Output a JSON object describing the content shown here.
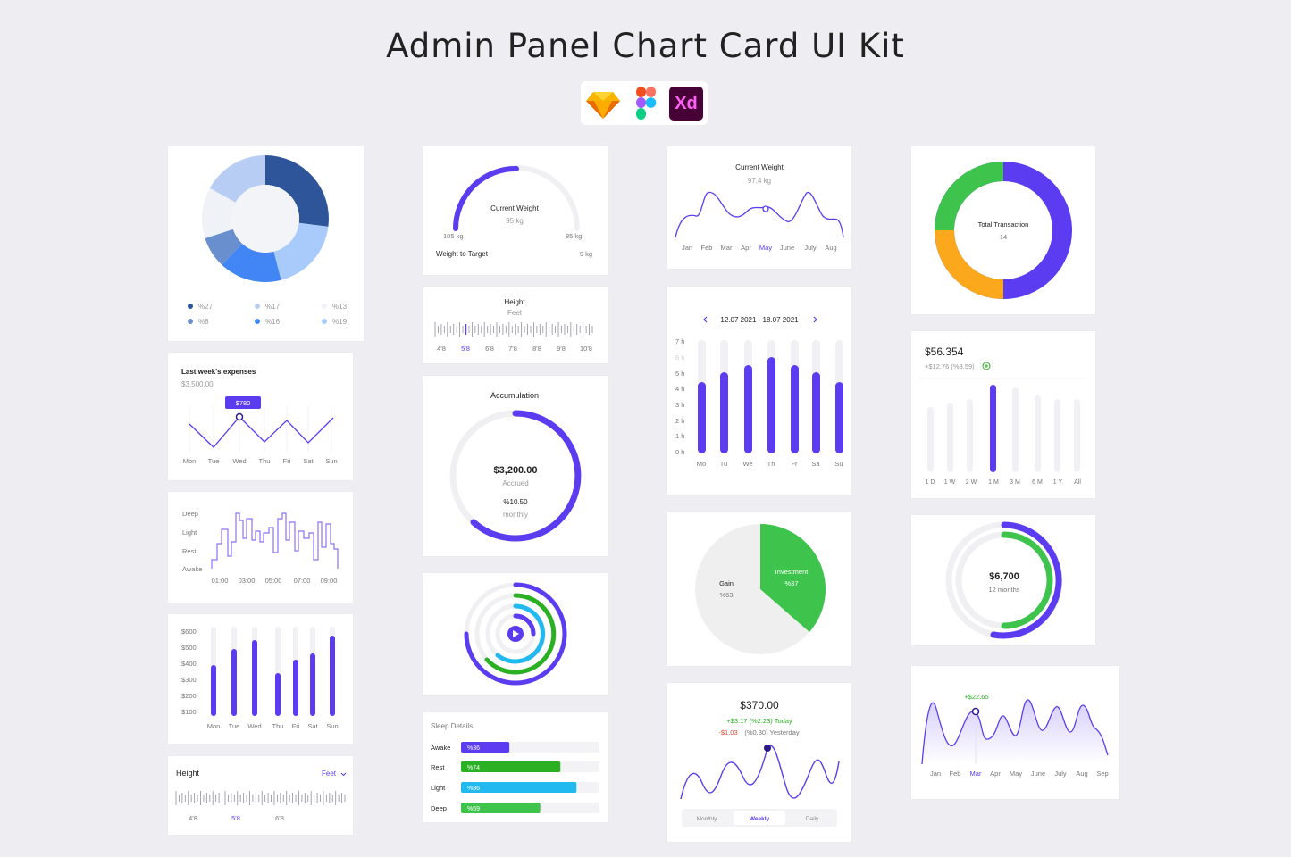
{
  "page": {
    "title": "Admin Panel Chart Card UI Kit"
  },
  "tools": {
    "xd_label": "Xd"
  },
  "donut_card": {
    "legend": [
      "%27",
      "%17",
      "%13",
      "%8",
      "%16",
      "%19"
    ],
    "colors": [
      "#2e5599",
      "#b7cdf4",
      "#eff2f7",
      "#6a8fcf",
      "#4286f5",
      "#a9cbfb"
    ]
  },
  "expenses_card": {
    "title": "Last week's expenses",
    "amount": "$3,500.00",
    "tooltip": "$780",
    "days": [
      "Mon",
      "Tue",
      "Wed",
      "Thu",
      "Fri",
      "Sat",
      "Sun"
    ]
  },
  "sleep_step_card": {
    "levels": [
      "Deep",
      "Light",
      "Rest",
      "Awake"
    ],
    "times": [
      "01:00",
      "03:00",
      "05:00",
      "07:00",
      "09:00"
    ]
  },
  "money_bar_card": {
    "ylabels": [
      "$600",
      "$500",
      "$400",
      "$300",
      "$200",
      "$100"
    ],
    "days": [
      "Mon",
      "Tue",
      "Wed",
      "Thu",
      "Fri",
      "Sat",
      "Sun"
    ]
  },
  "height_card_small": {
    "title": "Height",
    "unit_select": "Feet",
    "ticks": [
      "4'8",
      "5'8",
      "6'8"
    ]
  },
  "gauge_card": {
    "title": "Current Weight",
    "value": "95 kg",
    "min": "105 kg",
    "max": "85 kg",
    "footer_label": "Weight to Target",
    "footer_value": "9 kg"
  },
  "height_ruler_card": {
    "title": "Height",
    "unit": "Feet",
    "ticks": [
      "4'8",
      "5'8",
      "6'8",
      "7'8",
      "8'8",
      "9'8",
      "10'8"
    ]
  },
  "accumulation_card": {
    "title": "Accumulation",
    "amount": "$3,200.00",
    "amount_label": "Accrued",
    "rate": "%10.50",
    "rate_label": "monthly"
  },
  "sleep_details_card": {
    "title": "Sleep Details",
    "rows": [
      {
        "label": "Awake",
        "value": "%36",
        "color": "#5b3cf0"
      },
      {
        "label": "Rest",
        "value": "%74",
        "color": "#2bb024"
      },
      {
        "label": "Light",
        "value": "%86",
        "color": "#22b9f0"
      },
      {
        "label": "Deep",
        "value": "%59",
        "color": "#3ec44c"
      }
    ]
  },
  "weight_line_card": {
    "title": "Current Weight",
    "value": "97,4 kg",
    "months": [
      "Jan",
      "Feb",
      "Mar",
      "Apr",
      "May",
      "June",
      "July",
      "Aug"
    ]
  },
  "hours_card": {
    "date_range": "12.07 2021 - 18.07 2021",
    "ylabels": [
      "7 h",
      "6 h",
      "5 h",
      "4 h",
      "3 h",
      "2 h",
      "1 h",
      "0 h"
    ],
    "days": [
      "Mo",
      "Tu",
      "We",
      "Th",
      "Fr",
      "Sa",
      "Su"
    ]
  },
  "pie_card": {
    "invest_label": "Investment",
    "invest_value": "%37",
    "gain_label": "Gain",
    "gain_value": "%63"
  },
  "wave_card": {
    "amount": "$370.00",
    "today": "+$3.17 (%2.23) Today",
    "yesterday_amount": "-$1.03",
    "yesterday": "(%0.30) Yesterday",
    "tabs": [
      "Monthly",
      "Weekly",
      "Daily"
    ]
  },
  "transaction_card": {
    "title": "Total Transaction",
    "value": "14"
  },
  "stock_bar_card": {
    "amount": "$56.354",
    "change": "+$12.76 (%3.59)",
    "ranges": [
      "1 D",
      "1 W",
      "2 W",
      "1 M",
      "3 M",
      "6 M",
      "1 Y",
      "All"
    ]
  },
  "ring_card": {
    "amount": "$6,700",
    "period": "12 months"
  },
  "area_card": {
    "tooltip": "+$22.65",
    "months": [
      "Jan",
      "Feb",
      "Mar",
      "Apr",
      "May",
      "June",
      "July",
      "Aug",
      "Sep"
    ]
  }
}
